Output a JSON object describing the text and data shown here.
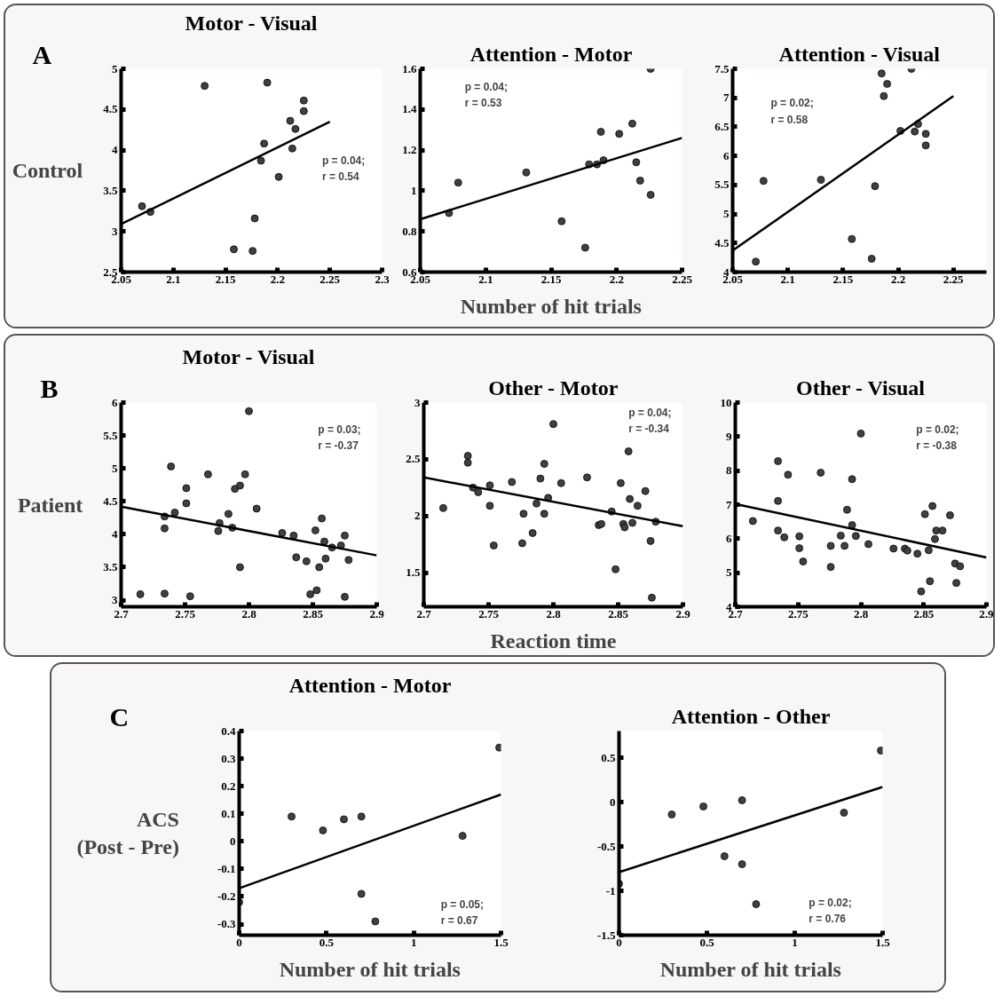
{
  "chart_data": [
    {
      "type": "scatter",
      "title": "Motor - Visual",
      "ylabel": "Control",
      "annotations": [
        "A",
        "p = 0.04;\nr = 0.54"
      ],
      "xlim": [
        2.05,
        2.3
      ],
      "ylim": [
        2.5,
        5
      ],
      "xticks": [
        2.05,
        2.1,
        2.15,
        2.2,
        2.25,
        2.3
      ],
      "yticks": [
        2.5,
        3,
        3.5,
        4,
        4.5,
        5
      ],
      "series": [
        {
          "color": "#404040",
          "marker": "circle",
          "x": [
            2.07,
            2.078,
            2.13,
            2.19,
            2.225,
            2.225,
            2.212,
            2.217,
            2.187,
            2.184,
            2.214,
            2.201,
            2.178,
            2.158,
            2.176
          ],
          "values": [
            3.31,
            3.24,
            4.79,
            4.83,
            4.61,
            4.48,
            4.36,
            4.26,
            4.08,
            3.87,
            4.02,
            3.67,
            3.16,
            2.78,
            2.76
          ]
        },
        {
          "type": "line",
          "color": "#000000",
          "x": [
            2.05,
            2.25
          ],
          "values": [
            3.09,
            4.35
          ]
        }
      ]
    },
    {
      "type": "scatter",
      "title": "Attention - Motor",
      "xlabel": "Number of hit trials",
      "annotations": [
        "p = 0.04;\nr = 0.53"
      ],
      "xlim": [
        2.05,
        2.25
      ],
      "ylim": [
        0.6,
        1.6
      ],
      "xticks": [
        2.05,
        2.1,
        2.15,
        2.2,
        2.25
      ],
      "yticks": [
        0.6,
        0.8,
        1,
        1.2,
        1.4,
        1.6
      ],
      "series": [
        {
          "color": "#404040",
          "marker": "circle",
          "x": [
            2.072,
            2.079,
            2.131,
            2.158,
            2.176,
            2.179,
            2.185,
            2.19,
            2.188,
            2.202,
            2.212,
            2.215,
            2.218,
            2.226,
            2.226
          ],
          "values": [
            0.89,
            1.04,
            1.09,
            0.85,
            0.72,
            1.13,
            1.13,
            1.15,
            1.29,
            1.28,
            1.33,
            1.14,
            1.05,
            0.98,
            1.6
          ]
        },
        {
          "type": "line",
          "color": "#000000",
          "x": [
            2.05,
            2.25
          ],
          "values": [
            0.86,
            1.26
          ]
        }
      ]
    },
    {
      "type": "scatter",
      "title": "Attention - Visual",
      "annotations": [
        "p = 0.02;\nr = 0.58"
      ],
      "xlim": [
        2.05,
        2.28
      ],
      "ylim": [
        4,
        7.5
      ],
      "xticks": [
        2.05,
        2.1,
        2.15,
        2.2,
        2.25
      ],
      "yticks": [
        4,
        4.5,
        5,
        5.5,
        6,
        6.5,
        7,
        7.5
      ],
      "series": [
        {
          "color": "#404040",
          "marker": "circle",
          "x": [
            2.071,
            2.078,
            2.13,
            2.158,
            2.176,
            2.179,
            2.185,
            2.19,
            2.187,
            2.202,
            2.212,
            2.215,
            2.218,
            2.225,
            2.225
          ],
          "values": [
            4.18,
            5.57,
            5.59,
            4.57,
            4.23,
            5.48,
            7.42,
            7.24,
            7.03,
            6.43,
            7.5,
            6.42,
            6.55,
            6.38,
            6.18
          ]
        },
        {
          "type": "line",
          "color": "#000000",
          "x": [
            2.05,
            2.25
          ],
          "values": [
            4.37,
            7.03
          ]
        }
      ]
    },
    {
      "type": "scatter",
      "title": "Motor - Visual",
      "ylabel": "Patient",
      "annotations": [
        "B",
        "p = 0.03;\nr = -0.37"
      ],
      "xlim": [
        2.7,
        2.9
      ],
      "ylim": [
        2.9,
        6
      ],
      "xticks": [
        2.7,
        2.75,
        2.8,
        2.85,
        2.9
      ],
      "yticks": [
        3,
        3.5,
        4,
        4.5,
        5,
        5.5,
        6
      ],
      "series": [
        {
          "color": "#404040",
          "marker": "circle",
          "x": [
            2.715,
            2.734,
            2.734,
            2.734,
            2.739,
            2.742,
            2.751,
            2.751,
            2.754,
            2.768,
            2.776,
            2.777,
            2.784,
            2.787,
            2.789,
            2.793,
            2.793,
            2.797,
            2.8,
            2.806,
            2.826,
            2.835,
            2.837,
            2.845,
            2.848,
            2.852,
            2.853,
            2.855,
            2.857,
            2.859,
            2.86,
            2.865,
            2.872,
            2.875,
            2.875,
            2.878
          ],
          "values": [
            3.09,
            4.27,
            4.09,
            3.1,
            5.03,
            4.33,
            4.7,
            4.47,
            3.06,
            4.91,
            4.05,
            4.17,
            4.31,
            4.1,
            4.69,
            4.74,
            3.5,
            4.91,
            5.87,
            4.39,
            4.02,
            3.98,
            3.65,
            3.59,
            3.09,
            4.06,
            3.15,
            3.5,
            4.24,
            3.89,
            3.63,
            3.8,
            3.83,
            3.98,
            3.05,
            3.61
          ]
        },
        {
          "type": "line",
          "color": "#000000",
          "x": [
            2.7,
            2.9
          ],
          "values": [
            4.42,
            3.68
          ]
        }
      ]
    },
    {
      "type": "scatter",
      "title": "Other - Motor",
      "xlabel": "Reaction time",
      "annotations": [
        "p = 0.04;\nr = -0.34"
      ],
      "xlim": [
        2.7,
        2.9
      ],
      "ylim": [
        1.2,
        3
      ],
      "xticks": [
        2.7,
        2.75,
        2.8,
        2.85,
        2.9
      ],
      "yticks": [
        1.5,
        2,
        2.5,
        3
      ],
      "series": [
        {
          "color": "#404040",
          "marker": "circle",
          "x": [
            2.715,
            2.734,
            2.734,
            2.738,
            2.742,
            2.751,
            2.751,
            2.754,
            2.768,
            2.776,
            2.777,
            2.784,
            2.787,
            2.79,
            2.793,
            2.793,
            2.796,
            2.8,
            2.806,
            2.826,
            2.835,
            2.837,
            2.845,
            2.848,
            2.852,
            2.854,
            2.855,
            2.858,
            2.859,
            2.861,
            2.865,
            2.871,
            2.875,
            2.876,
            2.879
          ],
          "values": [
            2.07,
            2.53,
            2.47,
            2.25,
            2.21,
            2.27,
            2.09,
            1.74,
            2.3,
            1.76,
            2.02,
            1.85,
            2.11,
            2.33,
            2.02,
            2.46,
            2.16,
            2.81,
            2.29,
            2.34,
            1.92,
            1.93,
            2.04,
            1.53,
            2.29,
            1.93,
            1.9,
            2.57,
            2.15,
            1.94,
            2.09,
            2.22,
            1.78,
            1.28,
            1.95
          ]
        },
        {
          "type": "line",
          "color": "#000000",
          "x": [
            2.7,
            2.9
          ],
          "values": [
            2.34,
            1.91
          ]
        }
      ]
    },
    {
      "type": "scatter",
      "title": "Other - Visual",
      "annotations": [
        "p = 0.02;\nr = -0.38"
      ],
      "xlim": [
        2.7,
        2.9
      ],
      "ylim": [
        4,
        10
      ],
      "xticks": [
        2.7,
        2.75,
        2.8,
        2.85,
        2.9
      ],
      "yticks": [
        4,
        5,
        6,
        7,
        8,
        9,
        10
      ],
      "series": [
        {
          "color": "#404040",
          "marker": "circle",
          "x": [
            2.714,
            2.734,
            2.734,
            2.734,
            2.739,
            2.742,
            2.751,
            2.751,
            2.754,
            2.768,
            2.776,
            2.776,
            2.784,
            2.787,
            2.789,
            2.793,
            2.793,
            2.796,
            2.8,
            2.806,
            2.826,
            2.835,
            2.837,
            2.845,
            2.848,
            2.851,
            2.854,
            2.855,
            2.857,
            2.859,
            2.86,
            2.865,
            2.871,
            2.875,
            2.876,
            2.879
          ],
          "values": [
            6.52,
            8.28,
            7.11,
            6.24,
            6.04,
            7.88,
            6.07,
            5.72,
            5.33,
            7.94,
            5.17,
            5.79,
            6.09,
            5.79,
            6.85,
            7.75,
            6.4,
            6.08,
            9.09,
            5.84,
            5.71,
            5.71,
            5.65,
            5.56,
            4.45,
            6.72,
            5.66,
            4.75,
            6.96,
            5.99,
            6.24,
            6.24,
            6.69,
            5.27,
            4.7,
            5.19
          ]
        },
        {
          "type": "line",
          "color": "#000000",
          "x": [
            2.7,
            2.9
          ],
          "values": [
            7.02,
            5.45
          ]
        }
      ]
    },
    {
      "type": "scatter",
      "title": "Attention - Motor",
      "xlabel": "Number of hit trials",
      "ylabel": "ACS\n(Post - Pre)",
      "annotations": [
        "C",
        "p = 0.05;\nr = 0.67"
      ],
      "xlim": [
        0,
        1.5
      ],
      "ylim": [
        -0.34,
        0.4
      ],
      "xticks": [
        0,
        0.5,
        1,
        1.5
      ],
      "yticks": [
        -0.3,
        -0.2,
        -0.1,
        0,
        0.1,
        0.2,
        0.3,
        0.4
      ],
      "series": [
        {
          "color": "#404040",
          "marker": "circle",
          "x": [
            0,
            0.3,
            0.48,
            0.6,
            0.7,
            0.7,
            0.78,
            1.28,
            1.49
          ],
          "values": [
            -0.22,
            0.09,
            0.04,
            0.08,
            0.09,
            -0.19,
            -0.29,
            0.02,
            0.34
          ]
        },
        {
          "type": "line",
          "color": "#000000",
          "x": [
            0,
            1.5
          ],
          "values": [
            -0.17,
            0.17
          ]
        }
      ]
    },
    {
      "type": "scatter",
      "title": "Attention - Other",
      "xlabel": "Number of hit trials",
      "annotations": [
        "p = 0.02;\nr = 0.76"
      ],
      "xlim": [
        0,
        1.5
      ],
      "ylim": [
        -1.5,
        0.8
      ],
      "xticks": [
        0,
        0.5,
        1,
        1.5
      ],
      "yticks": [
        -1.5,
        -1,
        -0.5,
        0,
        0.5
      ],
      "series": [
        {
          "color": "#404040",
          "marker": "circle",
          "x": [
            0,
            0.3,
            0.48,
            0.6,
            0.7,
            0.7,
            0.78,
            1.28,
            1.49
          ],
          "values": [
            -0.92,
            -0.14,
            -0.05,
            -0.61,
            0.02,
            -0.7,
            -1.15,
            -0.12,
            0.58
          ]
        },
        {
          "type": "line",
          "color": "#000000",
          "x": [
            0,
            1.5
          ],
          "values": [
            -0.79,
            0.17
          ]
        }
      ]
    }
  ]
}
